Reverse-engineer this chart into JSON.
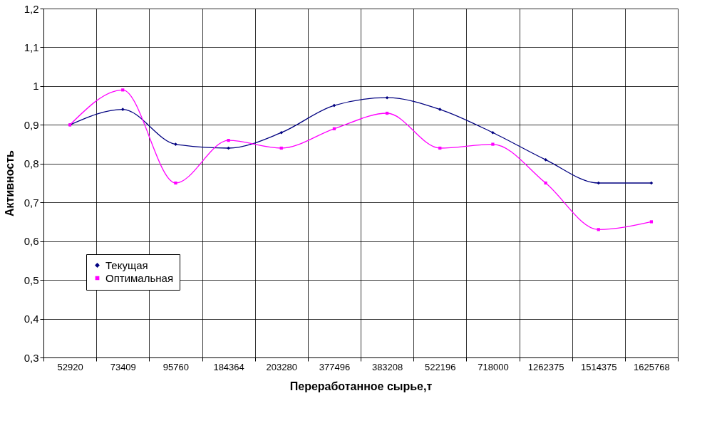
{
  "chart_data": {
    "type": "line",
    "xlabel": "Переработанное сырье,т",
    "ylabel": "Активность",
    "categories": [
      "52920",
      "73409",
      "95760",
      "184364",
      "203280",
      "377496",
      "383208",
      "522196",
      "718000",
      "1262375",
      "1514375",
      "1625768"
    ],
    "series": [
      {
        "name": "Текущая",
        "color": "#000080",
        "marker": "diamond",
        "values": [
          0.9,
          0.94,
          0.85,
          0.84,
          0.88,
          0.95,
          0.97,
          0.94,
          0.88,
          0.81,
          0.75,
          0.75
        ]
      },
      {
        "name": "Оптимальная",
        "color": "#ff00ff",
        "marker": "square",
        "values": [
          0.9,
          0.99,
          0.75,
          0.86,
          0.84,
          0.89,
          0.93,
          0.84,
          0.85,
          0.75,
          0.63,
          0.65
        ]
      }
    ],
    "ylim": [
      0.3,
      1.2
    ],
    "yticks": [
      {
        "value": 0.3,
        "label": "0,3"
      },
      {
        "value": 0.4,
        "label": "0,4"
      },
      {
        "value": 0.5,
        "label": "0,5"
      },
      {
        "value": 0.6,
        "label": "0,6"
      },
      {
        "value": 0.7,
        "label": "0,7"
      },
      {
        "value": 0.8,
        "label": "0,8"
      },
      {
        "value": 0.9,
        "label": "0,9"
      },
      1,
      {
        "value": 1.1,
        "label": "1,1"
      },
      {
        "value": 1.2,
        "label": "1,2"
      }
    ],
    "grid": true,
    "legend": "left"
  }
}
